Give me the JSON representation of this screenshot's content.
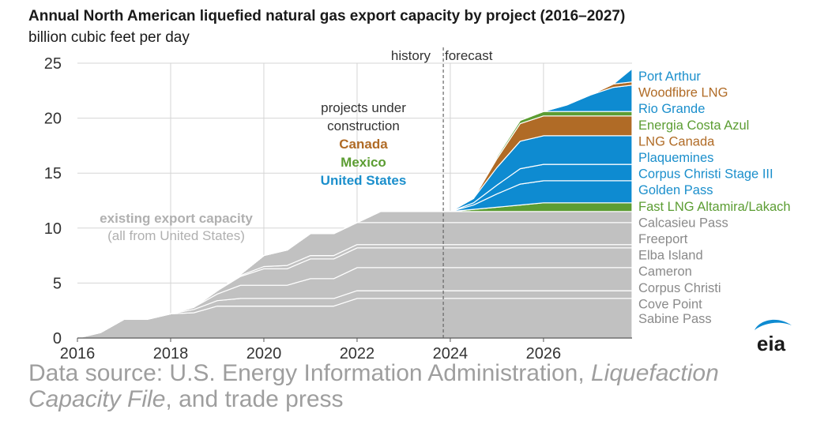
{
  "title": "Annual North American liquefied natural gas export capacity by project (2016–2027)",
  "subtitle": "billion cubic feet per day",
  "colors": {
    "existing": "#c1c1c1",
    "mexico": "#5c9d33",
    "canada": "#b06b26",
    "us": "#0e8bd1",
    "grid": "#d5d5d5",
    "axis_text": "#333333",
    "label_gray": "#8a8a8a",
    "label_us": "#1b8fcc"
  },
  "annotations": {
    "history": "history",
    "forecast": "forecast",
    "under_construction_1": "projects under",
    "under_construction_2": "construction",
    "canada": "Canada",
    "mexico": "Mexico",
    "united_states": "United States",
    "existing_1": "existing export capacity",
    "existing_2": "(all from United States)"
  },
  "source": {
    "prefix": "Data source: U.S. Energy Information Administration, ",
    "italic": "Liquefaction Capacity File",
    "suffix": ", and trade press"
  },
  "logo_text": "eia",
  "chart_data": {
    "type": "area",
    "stacked": true,
    "xlim": [
      2016,
      2027.9
    ],
    "ylim": [
      0,
      25
    ],
    "x_ticks": [
      2016,
      2018,
      2020,
      2022,
      2024,
      2026
    ],
    "y_ticks": [
      0,
      5,
      10,
      15,
      20,
      25
    ],
    "grid": true,
    "history_forecast_divider_x": 2023.85,
    "x": [
      2016,
      2016.5,
      2017,
      2017.5,
      2018,
      2018.5,
      2019,
      2019.5,
      2020,
      2020.5,
      2021,
      2021.5,
      2022,
      2022.5,
      2023,
      2023.5,
      2024,
      2024.5,
      2025,
      2025.5,
      2026,
      2026.5,
      2027,
      2027.5,
      2027.9
    ],
    "series": [
      {
        "name": "Sabine Pass",
        "group": "existing",
        "values": [
          0,
          0.5,
          1.7,
          1.7,
          2.2,
          2.3,
          2.9,
          2.9,
          2.9,
          2.9,
          2.9,
          2.9,
          3.6,
          3.6,
          3.6,
          3.6,
          3.6,
          3.6,
          3.6,
          3.6,
          3.6,
          3.6,
          3.6,
          3.6,
          3.6
        ]
      },
      {
        "name": "Cove Point",
        "group": "existing",
        "values": [
          0,
          0,
          0,
          0,
          0,
          0.3,
          0.5,
          0.7,
          0.7,
          0.7,
          0.7,
          0.7,
          0.7,
          0.7,
          0.7,
          0.7,
          0.7,
          0.7,
          0.7,
          0.7,
          0.7,
          0.7,
          0.7,
          0.7,
          0.7
        ]
      },
      {
        "name": "Corpus Christi",
        "group": "existing",
        "values": [
          0,
          0,
          0,
          0,
          0,
          0.2,
          0.6,
          1.2,
          1.2,
          1.2,
          1.8,
          1.8,
          2.1,
          2.1,
          2.1,
          2.1,
          2.1,
          2.1,
          2.1,
          2.1,
          2.1,
          2.1,
          2.1,
          2.1,
          2.1
        ]
      },
      {
        "name": "Cameron",
        "group": "existing",
        "values": [
          0,
          0,
          0,
          0,
          0,
          0,
          0.3,
          0.8,
          1.5,
          1.5,
          1.8,
          1.8,
          1.8,
          1.8,
          1.8,
          1.8,
          1.8,
          1.8,
          1.8,
          1.8,
          1.8,
          1.8,
          1.8,
          1.8,
          1.8
        ]
      },
      {
        "name": "Elba Island",
        "group": "existing",
        "values": [
          0,
          0,
          0,
          0,
          0,
          0,
          0,
          0.1,
          0.2,
          0.3,
          0.3,
          0.3,
          0.3,
          0.3,
          0.3,
          0.3,
          0.3,
          0.3,
          0.3,
          0.3,
          0.3,
          0.3,
          0.3,
          0.3,
          0.3
        ]
      },
      {
        "name": "Freeport",
        "group": "existing",
        "values": [
          0,
          0,
          0,
          0,
          0,
          0,
          0,
          0.1,
          1.0,
          1.4,
          2.0,
          2.0,
          2.0,
          2.0,
          2.0,
          2.0,
          2.0,
          2.0,
          2.0,
          2.0,
          2.0,
          2.0,
          2.0,
          2.0,
          2.0
        ]
      },
      {
        "name": "Calcasieu Pass",
        "group": "existing",
        "values": [
          0,
          0,
          0,
          0,
          0,
          0,
          0,
          0,
          0,
          0,
          0,
          0,
          0,
          1.0,
          1.0,
          1.0,
          1.0,
          1.0,
          1.0,
          1.0,
          1.0,
          1.0,
          1.0,
          1.0,
          1.0
        ]
      },
      {
        "name": "Fast LNG Altamira/Lakach",
        "group": "mexico",
        "values": [
          0,
          0,
          0,
          0,
          0,
          0,
          0,
          0,
          0,
          0,
          0,
          0,
          0,
          0,
          0,
          0,
          0,
          0.2,
          0.4,
          0.6,
          0.8,
          0.8,
          0.8,
          0.8,
          0.8
        ]
      },
      {
        "name": "Golden Pass",
        "group": "us",
        "values": [
          0,
          0,
          0,
          0,
          0,
          0,
          0,
          0,
          0,
          0,
          0,
          0,
          0,
          0,
          0,
          0,
          0,
          0.4,
          1.2,
          1.9,
          2.0,
          2.0,
          2.0,
          2.0,
          2.0
        ]
      },
      {
        "name": "Corpus Christi Stage III",
        "group": "us",
        "values": [
          0,
          0,
          0,
          0,
          0,
          0,
          0,
          0,
          0,
          0,
          0,
          0,
          0,
          0,
          0,
          0,
          0,
          0.2,
          0.8,
          1.4,
          1.5,
          1.5,
          1.5,
          1.5,
          1.5
        ]
      },
      {
        "name": "Plaquemines",
        "group": "us",
        "values": [
          0,
          0,
          0,
          0,
          0,
          0,
          0,
          0,
          0,
          0,
          0,
          0,
          0,
          0,
          0,
          0,
          0,
          0.4,
          1.6,
          2.5,
          2.6,
          2.6,
          2.6,
          2.6,
          2.6
        ]
      },
      {
        "name": "LNG Canada",
        "group": "canada",
        "values": [
          0,
          0,
          0,
          0,
          0,
          0,
          0,
          0,
          0,
          0,
          0,
          0,
          0,
          0,
          0,
          0,
          0,
          0,
          0.8,
          1.6,
          1.8,
          1.8,
          1.8,
          1.8,
          1.8
        ]
      },
      {
        "name": "Energia Costa Azul",
        "group": "mexico",
        "values": [
          0,
          0,
          0,
          0,
          0,
          0,
          0,
          0,
          0,
          0,
          0,
          0,
          0,
          0,
          0,
          0,
          0,
          0,
          0.2,
          0.3,
          0.4,
          0.4,
          0.4,
          0.4,
          0.4
        ]
      },
      {
        "name": "Rio Grande",
        "group": "us",
        "values": [
          0,
          0,
          0,
          0,
          0,
          0,
          0,
          0,
          0,
          0,
          0,
          0,
          0,
          0,
          0,
          0,
          0,
          0,
          0,
          0,
          0,
          0.6,
          1.5,
          2.2,
          2.4
        ]
      },
      {
        "name": "Woodfibre LNG",
        "group": "canada",
        "values": [
          0,
          0,
          0,
          0,
          0,
          0,
          0,
          0,
          0,
          0,
          0,
          0,
          0,
          0,
          0,
          0,
          0,
          0,
          0,
          0,
          0,
          0,
          0,
          0.3,
          0.3
        ]
      },
      {
        "name": "Port Arthur",
        "group": "us",
        "values": [
          0,
          0,
          0,
          0,
          0,
          0,
          0,
          0,
          0,
          0,
          0,
          0,
          0,
          0,
          0,
          0,
          0,
          0,
          0,
          0,
          0,
          0,
          0,
          0,
          1.2
        ]
      }
    ],
    "legend_order": [
      "Port Arthur",
      "Woodfibre LNG",
      "Rio Grande",
      "Energia Costa Azul",
      "LNG Canada",
      "Plaquemines",
      "Corpus Christi Stage III",
      "Golden Pass",
      "Fast LNG Altamira/Lakach",
      "Calcasieu Pass",
      "Freeport",
      "Elba Island",
      "Cameron",
      "Corpus Christi",
      "Cove Point",
      "Sabine Pass"
    ]
  }
}
